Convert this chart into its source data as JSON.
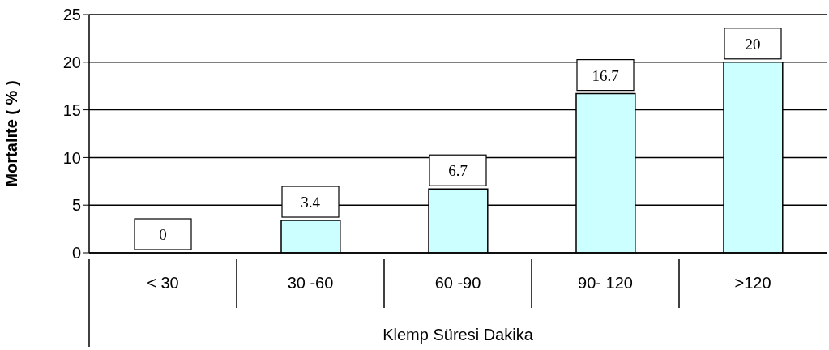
{
  "chart_data": {
    "type": "bar",
    "xlabel": "Klemp Süresi Dakika",
    "ylabel": "Mortalite ( % )",
    "categories": [
      "< 30",
      "30 -60",
      "60 -90",
      "90- 120",
      ">120"
    ],
    "values": [
      0,
      3.4,
      6.7,
      16.7,
      20
    ],
    "color": "#ccffff",
    "ylim": [
      0,
      25
    ],
    "yticks": [
      0,
      5,
      10,
      15,
      20,
      25
    ],
    "grid": "y",
    "data_labels": true
  }
}
